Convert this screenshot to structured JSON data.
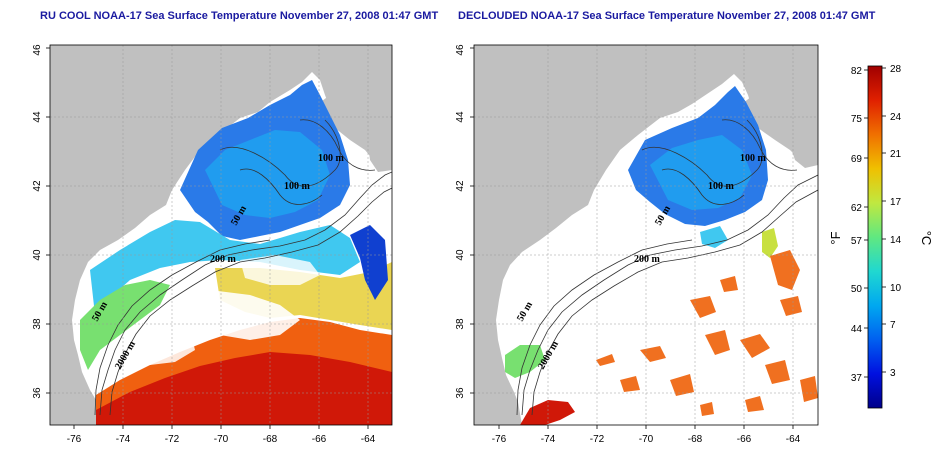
{
  "titles": {
    "left": "RU COOL NOAA-17 Sea Surface Temperature November 27, 2008 01:47 GMT",
    "right": "DECLOUDED NOAA-17 Sea Surface Temperature November 27, 2008 01:47 GMT"
  },
  "map": {
    "lon_ticks": [
      "-76",
      "-74",
      "-72",
      "-70",
      "-68",
      "-66",
      "-64"
    ],
    "lat_ticks": [
      "36",
      "38",
      "40",
      "42",
      "44",
      "46"
    ],
    "lon_range": [
      -77,
      -63
    ],
    "lat_range": [
      35,
      46
    ],
    "land_color": "#c0c0c0",
    "contour_labels": {
      "left": [
        "100 m",
        "100 m",
        "50 m",
        "200 m",
        "50 m",
        "2000 m"
      ],
      "right": [
        "100 m",
        "100 m",
        "50 m",
        "200 m",
        "50 m",
        "2000 m"
      ]
    }
  },
  "colorbar": {
    "fahrenheit_ticks": [
      "82",
      "75",
      "69",
      "62",
      "57",
      "50",
      "44",
      "37"
    ],
    "celsius_ticks": [
      "28",
      "24",
      "21",
      "17",
      "14",
      "10",
      "7",
      "3"
    ],
    "fahrenheit_unit": "°F",
    "celsius_unit": "°C",
    "colors": [
      "#00008a",
      "#0010e0",
      "#0060f0",
      "#00a8f0",
      "#20d8d0",
      "#60e880",
      "#c0e840",
      "#f0c000",
      "#f07000",
      "#e02000",
      "#a00000"
    ]
  }
}
